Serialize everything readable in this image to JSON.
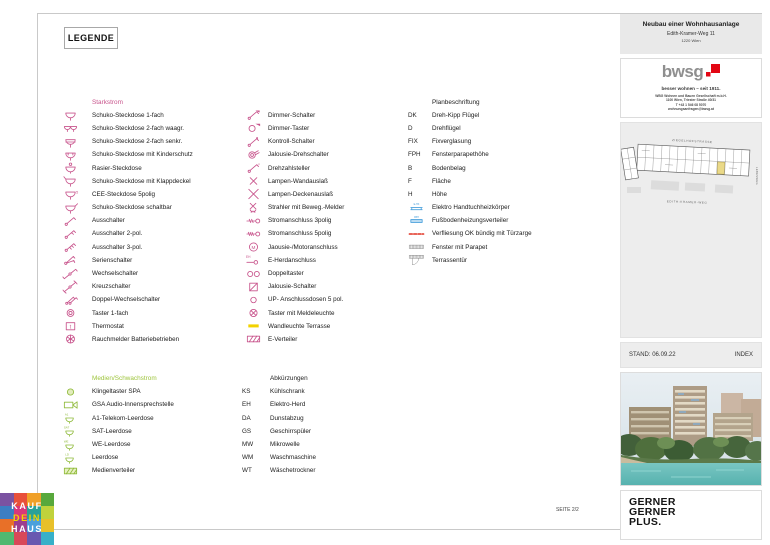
{
  "page": {
    "legende": "LEGENDE",
    "seite": "SEITE 2/2"
  },
  "colors": {
    "accent_pink": "#c8548c",
    "accent_green": "#9dc43b",
    "accent_blue": "#4aa0dc",
    "accent_red": "#e03020",
    "brand_red": "#e30613",
    "highlight_yellow": "#f2d200"
  },
  "legend": {
    "starkstrom": {
      "heading": "Starkstrom",
      "items": [
        {
          "icon": "schuko-1",
          "label": "Schuko-Steckdose 1-fach"
        },
        {
          "icon": "schuko-2w",
          "label": "Schuko-Steckdose 2-fach waagr."
        },
        {
          "icon": "schuko-2s",
          "label": "Schuko-Steckdose 2-fach senkr."
        },
        {
          "icon": "schuko-kinderschutz",
          "label": "Schuko-Steckdose mit Kinderschutz"
        },
        {
          "icon": "rasier-steckdose",
          "label": "Rasier-Steckdose"
        },
        {
          "icon": "schuko-klappdeckel",
          "label": "Schuko-Steckdose mit Klappdeckel"
        },
        {
          "icon": "cee-steckdose-5polig",
          "label": "CEE-Steckdose 5polig"
        },
        {
          "icon": "schuko-schaltbar",
          "label": "Schuko-Steckdose schaltbar"
        },
        {
          "icon": "ausschalter",
          "label": "Ausschalter"
        },
        {
          "icon": "ausschalter-2pol",
          "label": "Ausschalter 2-pol."
        },
        {
          "icon": "ausschalter-3pol",
          "label": "Ausschalter 3-pol."
        },
        {
          "icon": "serienschalter",
          "label": "Serienschalter"
        },
        {
          "icon": "wechselschalter",
          "label": "Wechselschalter"
        },
        {
          "icon": "kreuzschalter",
          "label": "Kreuzschalter"
        },
        {
          "icon": "doppel-wechselschalter",
          "label": "Doppel-Wechselschalter"
        },
        {
          "icon": "taster-1fach",
          "label": "Taster 1-fach"
        },
        {
          "icon": "thermostat",
          "label": "Thermostat"
        },
        {
          "icon": "rauchmelder",
          "label": "Rauchmelder Batteriebetrieben"
        }
      ]
    },
    "schalter": {
      "items": [
        {
          "icon": "dimmer-schalter",
          "label": "Dimmer-Schalter"
        },
        {
          "icon": "dimmer-taster",
          "label": "Dimmer-Taster"
        },
        {
          "icon": "kontroll-schalter",
          "label": "Kontroll-Schalter"
        },
        {
          "icon": "jalousie-drehschalter",
          "label": "Jalousie-Drehschalter"
        },
        {
          "icon": "drehzahlsteller",
          "label": "Drehzahlsteller"
        },
        {
          "icon": "lampen-wandauslass",
          "label": "Lampen-Wandauslaß"
        },
        {
          "icon": "lampen-deckenauslass",
          "label": "Lampen-Deckenauslaß"
        },
        {
          "icon": "strahler-bewegungsmelder",
          "label": "Strahler mit Beweg.-Melder"
        },
        {
          "icon": "stromanschluss-3polig",
          "label": "Stromanschluss 3polig"
        },
        {
          "icon": "stromanschluss-5polig",
          "label": "Stromanschluss 5polig"
        },
        {
          "icon": "jalousie-motoranschluss",
          "label": "Jaousie-/Motoranschluss"
        },
        {
          "icon": "e-herdanschluss",
          "label": "E-Herdanschluss"
        },
        {
          "icon": "doppeltaster",
          "label": "Doppeltaster"
        },
        {
          "icon": "jalousie-schalter",
          "label": "Jalousie-Schalter"
        },
        {
          "icon": "up-anschlussdose-5pol",
          "label": "UP- Anschlussdosen 5 pol."
        },
        {
          "icon": "taster-meldeleuchte",
          "label": "Taster mit Meldeleuchte"
        },
        {
          "icon": "wandleuchte-terrasse",
          "label": "Wandleuchte Terrasse"
        },
        {
          "icon": "e-verteiler",
          "label": "E-Verteiler"
        }
      ]
    },
    "planbeschriftung": {
      "heading": "Planbeschriftung",
      "items": [
        {
          "code": "DK",
          "label": "Dreh-Kipp Flügel"
        },
        {
          "code": "D",
          "label": "Drehflügel"
        },
        {
          "code": "FIX",
          "label": "Fixverglasung"
        },
        {
          "code": "FPH",
          "label": "Fensterparapethöhe"
        },
        {
          "code": "B",
          "label": "Bodenbelag"
        },
        {
          "code": "F",
          "label": "Fläche"
        },
        {
          "code": "H",
          "label": "Höhe"
        },
        {
          "icon": "elektro-handtuchheizkoerper",
          "label": "Elektro Handtuchheizkörper"
        },
        {
          "icon": "fussbodenheizungsverteiler",
          "label": "Fußbodenheizungsverteiler"
        },
        {
          "icon": "verfliesung-tuerzarge",
          "label": "Verfliesung OK bündig mit Türzarge"
        },
        {
          "icon": "fenster-mit-parapet",
          "label": "Fenster mit Parapet"
        },
        {
          "icon": "terrassentuer",
          "label": "Terrassentür"
        }
      ]
    },
    "medien": {
      "heading": "Medien/Schwachstrom",
      "items": [
        {
          "icon": "klingeltaster-spa",
          "label": "Klingeltaster SPA"
        },
        {
          "icon": "gsa-audio-innensprechstelle",
          "label": "GSA Audio-Innensprechstelle"
        },
        {
          "icon": "a1-telekom-leerdose",
          "label": "A1-Telekom-Leerdose"
        },
        {
          "icon": "sat-leerdose",
          "label": "SAT-Leerdose"
        },
        {
          "icon": "we-leerdose",
          "label": "WE-Leerdose"
        },
        {
          "icon": "leerdose",
          "label": "Leerdose"
        },
        {
          "icon": "medienverteiler",
          "label": "Medienverteiler"
        }
      ]
    },
    "abkuerzungen": {
      "heading": "Abkürzungen",
      "items": [
        {
          "code": "KS",
          "label": "Kühlschrank"
        },
        {
          "code": "EH",
          "label": "Elektro-Herd"
        },
        {
          "code": "DA",
          "label": "Dunstabzug"
        },
        {
          "code": "GS",
          "label": "Geschirrspüler"
        },
        {
          "code": "MW",
          "label": "Mikrowelle"
        },
        {
          "code": "WM",
          "label": "Waschmaschine"
        },
        {
          "code": "WT",
          "label": "Wäschetrockner"
        }
      ]
    }
  },
  "sidebar": {
    "project": {
      "title": "Neubau einer Wohnhausanlage",
      "street": "Edith-Kramer-Weg 11",
      "city": "1220 Wien"
    },
    "bwsg": {
      "wordmark": "bwsg",
      "tagline": "besser wohnen – seit 1911.",
      "company": "WBG Wohnen und Bauen Gesellschaft m.b.H.",
      "address": "1100 Wien, Triester Straße 40/31",
      "phone": "T +43 1 546 08 5070",
      "email": "wohnungsanfragen@bwsg.at"
    },
    "siteplan": {
      "street_top": "ZIEGELHOFSTRASSE",
      "street_bottom": "EDITH-KRAMER-WEG",
      "street_right": "LEBENWEG"
    },
    "stand": "STAND: 06.09.22",
    "index": "INDEX",
    "architect": {
      "line1": "GERNER",
      "line2": "GERNER",
      "line3": "PLUS."
    }
  },
  "footer_logo": {
    "lines": [
      "KAUF",
      "DEIN",
      "HAUS"
    ],
    "palette": [
      "#7b52a1",
      "#e8503a",
      "#f0a028",
      "#58a83c",
      "#3d7ec2",
      "#d8387a",
      "#2aa198",
      "#c0d23c",
      "#e87028",
      "#9c3d8f",
      "#4aa0dc",
      "#e8c02a",
      "#50b870",
      "#d84858",
      "#6858b0",
      "#38b0c8"
    ]
  }
}
